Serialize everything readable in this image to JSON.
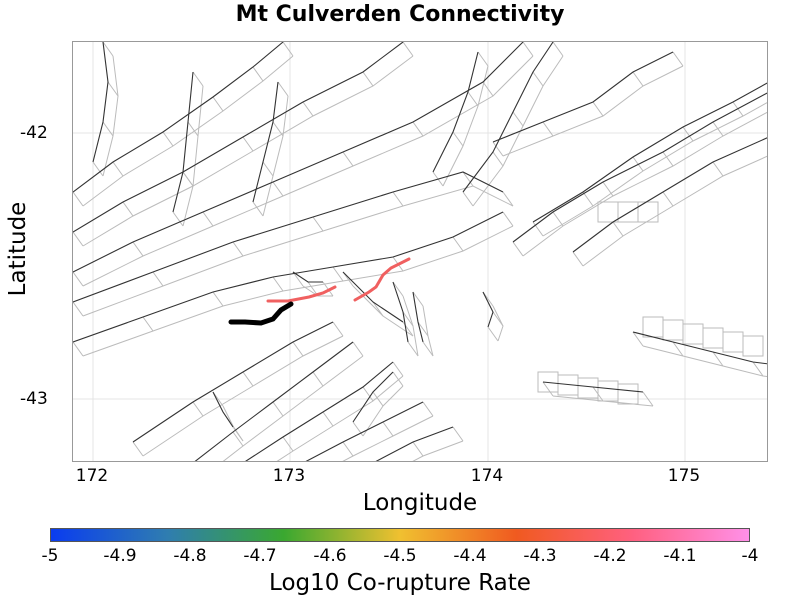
{
  "title": "Mt Culverden Connectivity",
  "map": {
    "xlabel": "Longitude",
    "ylabel": "Latitude",
    "xlim": [
      171.88,
      175.42
    ],
    "ylim": [
      -43.23,
      -41.66
    ],
    "x_ticks": [
      "172",
      "173",
      "174",
      "175"
    ],
    "y_ticks": [
      "-42",
      "-43"
    ],
    "grid": "on",
    "source_fault": "Mt Culverden",
    "source_color": "#000000",
    "corupture_color": "#f06060"
  },
  "colorbar": {
    "label": "Log10 Co-rupture Rate",
    "ticks": [
      "-5",
      "-4.9",
      "-4.8",
      "-4.7",
      "-4.6",
      "-4.5",
      "-4.4",
      "-4.3",
      "-4.2",
      "-4.1",
      "-4"
    ],
    "range": [
      -5,
      -4
    ],
    "colors": [
      "#0a3cf0",
      "#2f7db0",
      "#3aa830",
      "#f0c030",
      "#f05a20",
      "#ff6080",
      "#ff90e8"
    ]
  }
}
